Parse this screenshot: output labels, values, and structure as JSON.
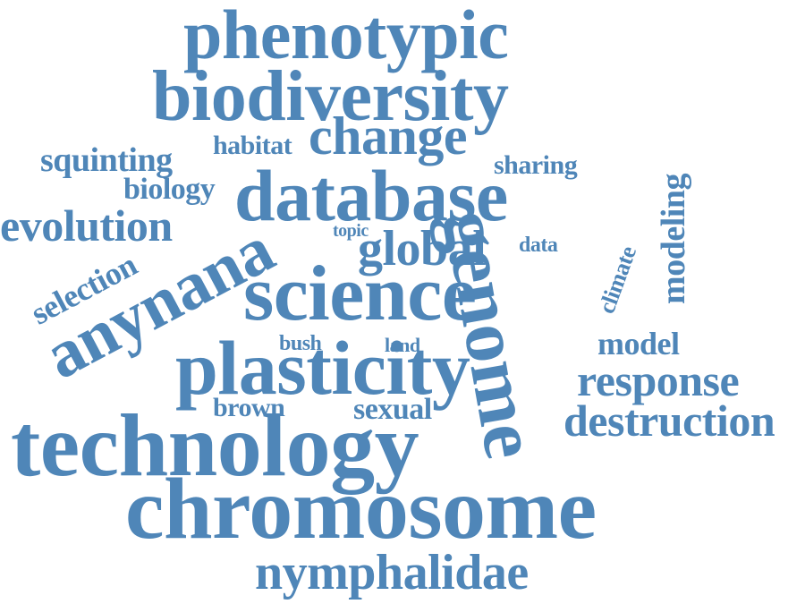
{
  "color": "#4f86b8",
  "words": [
    "phenotypic",
    "biodiversity",
    "change",
    "squinting",
    "habitat",
    "sharing",
    "biology",
    "database",
    "evolution",
    "topic",
    "global",
    "data",
    "genome",
    "modeling",
    "climate",
    "selection",
    "anynana",
    "science",
    "bush",
    "land",
    "model",
    "plasticity",
    "response",
    "brown",
    "sexual",
    "destruction",
    "technology",
    "chromosome",
    "nymphalidae"
  ]
}
